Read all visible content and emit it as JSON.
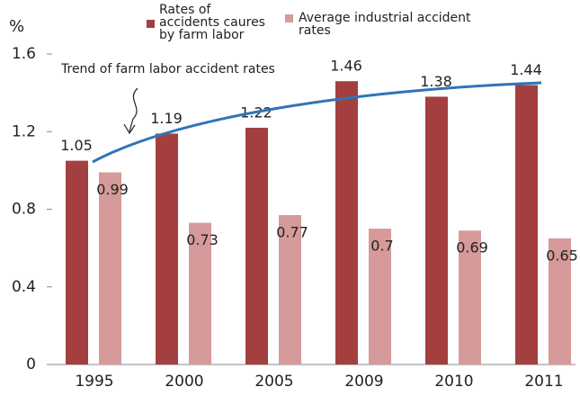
{
  "chart_data": {
    "type": "bar",
    "y_label": "%",
    "annotation": "Trend of farm labor accident rates",
    "categories": [
      "1995",
      "2000",
      "2005",
      "2009",
      "2010",
      "2011"
    ],
    "series": [
      {
        "name": "Rates of accidents caures by farm labor",
        "color": "#a3403f",
        "values": [
          1.05,
          1.19,
          1.22,
          1.46,
          1.38,
          1.44
        ]
      },
      {
        "name": "Average industrial accident rates",
        "color": "#d59a99",
        "values": [
          0.99,
          0.73,
          0.77,
          0.7,
          0.69,
          0.65
        ]
      }
    ],
    "ylim": [
      0,
      1.6
    ],
    "yticks": [
      0,
      0.4,
      0.8,
      1.2,
      1.6
    ],
    "grid": false
  }
}
